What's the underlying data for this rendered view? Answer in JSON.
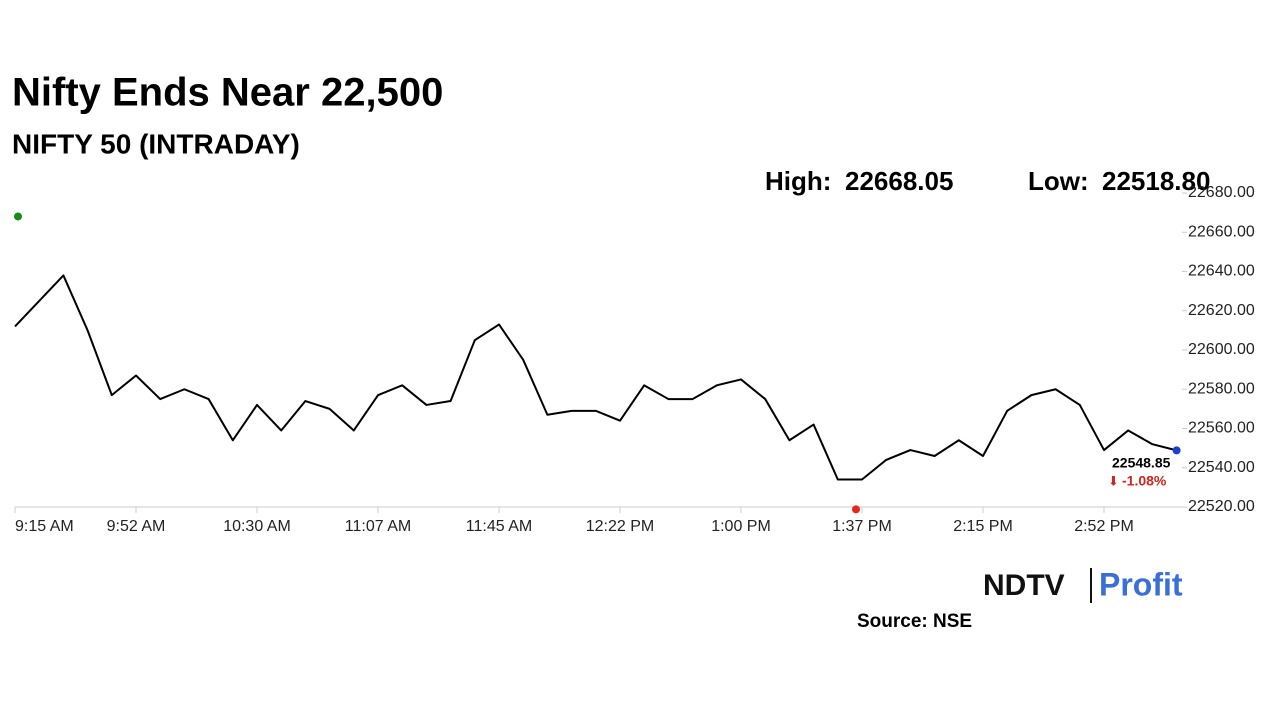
{
  "chart_data": {
    "type": "line",
    "title": "Nifty Ends Near 22,500",
    "subtitle": "NIFTY 50 (INTRADAY)",
    "high": {
      "name": "High:",
      "value": 22668.05,
      "label": "22668.05",
      "index": 0,
      "color": "#1a8a1a"
    },
    "low": {
      "name": "Low:",
      "value": 22518.8,
      "label": "22518.80",
      "index": 35,
      "color": "#e8261c"
    },
    "change": {
      "value": -1.08,
      "label": "-1.08%",
      "color": "#d0241c"
    },
    "end_color": "#1c3fd0",
    "categories": [
      "9:15 AM",
      null,
      null,
      null,
      null,
      "9:52 AM",
      null,
      null,
      null,
      null,
      "10:30 AM",
      null,
      null,
      null,
      null,
      "11:07 AM",
      null,
      null,
      null,
      null,
      "11:45 AM",
      null,
      null,
      null,
      null,
      "12:22 PM",
      null,
      null,
      null,
      null,
      "1:00 PM",
      null,
      null,
      null,
      null,
      "1:37 PM",
      null,
      null,
      null,
      null,
      "2:15 PM",
      null,
      null,
      null,
      null,
      "2:52 PM",
      null,
      null,
      null
    ],
    "series": [
      {
        "name": "NIFTY 50",
        "color": "#000000",
        "values": [
          22612,
          22625,
          22638,
          22610,
          22577,
          22587,
          22575,
          22580,
          22575,
          22554,
          22572,
          22559,
          22574,
          22570,
          22559,
          22577,
          22582,
          22572,
          22574,
          22605,
          22613,
          22595,
          22567,
          22569,
          22569,
          22564,
          22582,
          22575,
          22575,
          22582,
          22585,
          22575,
          22554,
          22562,
          22534,
          22534,
          22544,
          22549,
          22546,
          22554,
          22546,
          22569,
          22577,
          22580,
          22572,
          22549,
          22559,
          22552,
          22548.85
        ]
      }
    ],
    "ylim": [
      22520,
      22680
    ],
    "yticks": [
      {
        "value": 22520,
        "label": "22520.00"
      },
      {
        "value": 22540,
        "label": "22540.00"
      },
      {
        "value": 22560,
        "label": "22560.00"
      },
      {
        "value": 22580,
        "label": "22580.00"
      },
      {
        "value": 22600,
        "label": "22600.00"
      },
      {
        "value": 22620,
        "label": "22620.00"
      },
      {
        "value": 22640,
        "label": "22640.00"
      },
      {
        "value": 22660,
        "label": "22660.00"
      },
      {
        "value": 22680,
        "label": "22680.00"
      }
    ],
    "brand": {
      "left": "NDTV",
      "right": "Profit"
    },
    "source": "Source: NSE"
  }
}
